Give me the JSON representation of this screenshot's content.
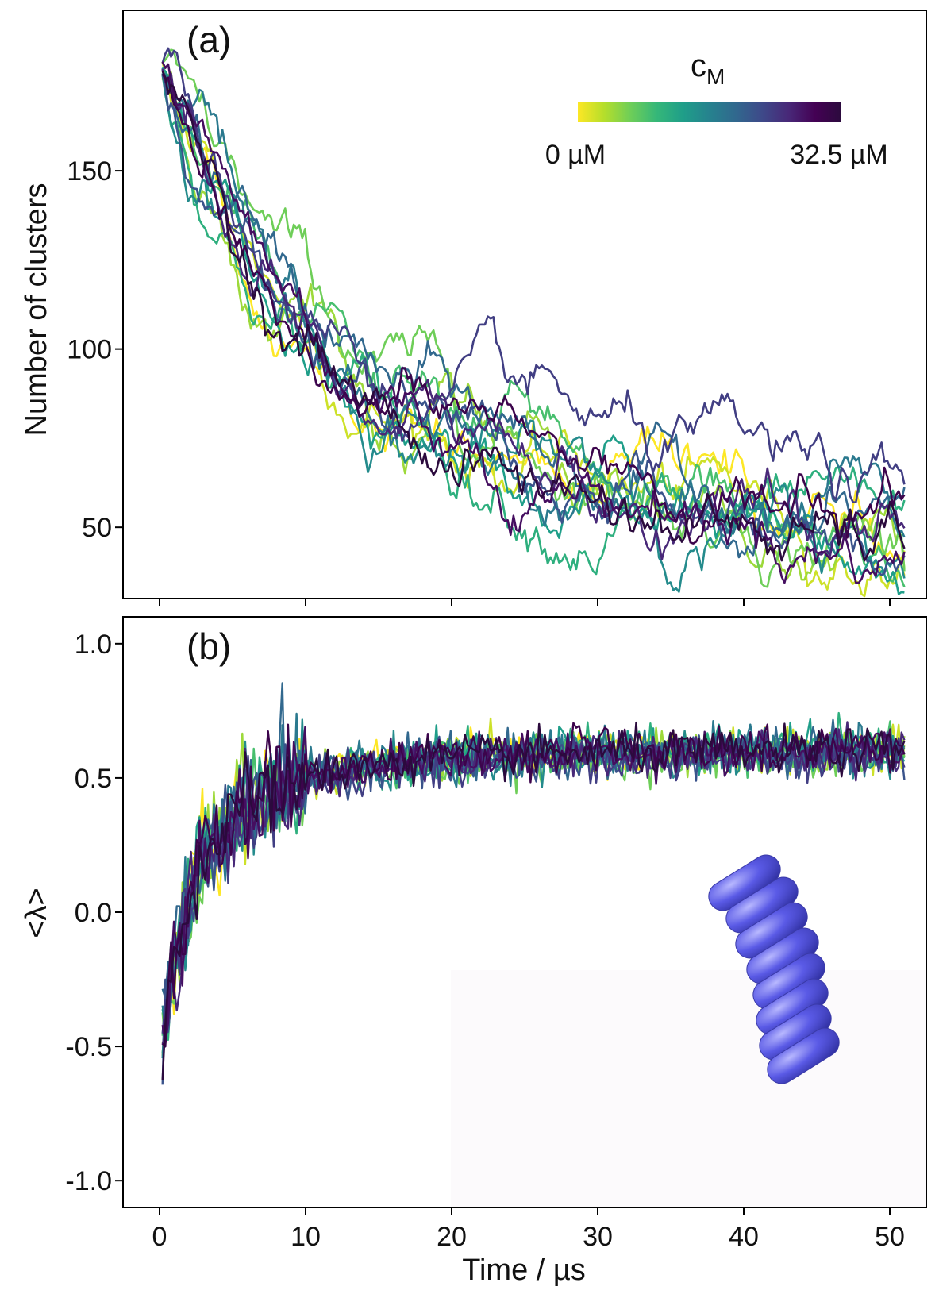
{
  "chart_data": [
    {
      "panel": "(a)",
      "type": "line",
      "title": "",
      "xlabel": "",
      "ylabel": "Number of clusters",
      "xlim": [
        -2.5,
        52.5
      ],
      "ylim": [
        30,
        195
      ],
      "yticks": [
        50,
        100,
        150
      ],
      "ytick_labels": [
        "50",
        "100",
        "150"
      ],
      "xticks": [
        0,
        10,
        20,
        30,
        40,
        50
      ],
      "grid": false,
      "n_series": 16,
      "x_range": [
        0.2,
        51
      ],
      "mean_curve": {
        "x": [
          0.2,
          2,
          5,
          8,
          10,
          12,
          15,
          20,
          25,
          30,
          35,
          40,
          45,
          51
        ],
        "y": [
          178,
          160,
          137,
          118,
          108,
          99,
          88,
          78,
          70,
          64,
          59,
          54,
          49,
          45
        ]
      },
      "series_spread": 6,
      "colorbar": {
        "label": "c",
        "label_sub": "M",
        "min_label": "0 µM",
        "max_label": "32.5 µM",
        "range": [
          0,
          32.5
        ],
        "colormap": "viridis",
        "stops": [
          "#fde725",
          "#b5de2b",
          "#6ece58",
          "#35b779",
          "#1f9e89",
          "#26828e",
          "#31688e",
          "#3e4989",
          "#482878",
          "#440154",
          "#2b0a3d"
        ]
      }
    },
    {
      "panel": "(b)",
      "type": "line",
      "title": "",
      "xlabel": "Time / µs",
      "ylabel": "<λ>",
      "xlim": [
        -2.5,
        52.5
      ],
      "ylim": [
        -1.1,
        1.1
      ],
      "yticks": [
        -1.0,
        -0.5,
        0.0,
        0.5,
        1.0
      ],
      "ytick_labels": [
        "-1.0",
        "-0.5",
        "0.0",
        "0.5",
        "1.0"
      ],
      "xticks": [
        0,
        10,
        20,
        30,
        40,
        50
      ],
      "xtick_labels": [
        "0",
        "10",
        "20",
        "30",
        "40",
        "50"
      ],
      "grid": false,
      "n_series": 16,
      "x_range": [
        0.2,
        51
      ],
      "mean_curve": {
        "x": [
          0.2,
          1,
          2,
          3,
          5,
          8,
          10,
          15,
          20,
          25,
          30,
          40,
          51
        ],
        "y": [
          -0.45,
          -0.2,
          0.05,
          0.2,
          0.35,
          0.45,
          0.5,
          0.55,
          0.57,
          0.58,
          0.59,
          0.59,
          0.6
        ]
      },
      "series_noise": 0.04,
      "inset": "rod-stack-illustration"
    }
  ]
}
